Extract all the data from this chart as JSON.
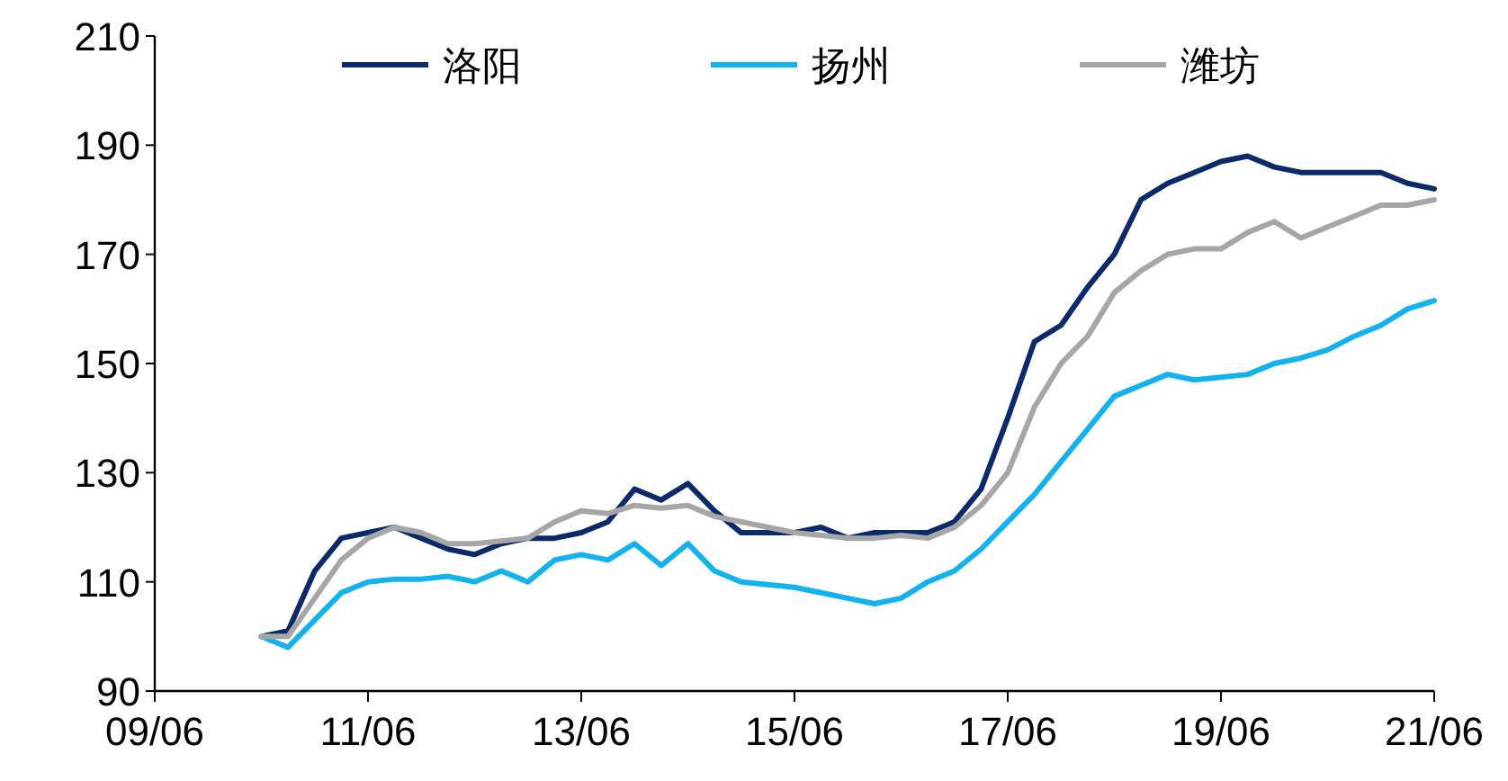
{
  "chart_data": {
    "type": "line",
    "legend": "top",
    "grid": false,
    "marker": "none",
    "line_style": "solid",
    "categories": [
      "09/06",
      null,
      null,
      null,
      null,
      null,
      null,
      null,
      "11/06",
      null,
      null,
      null,
      null,
      null,
      null,
      null,
      "13/06",
      null,
      null,
      null,
      null,
      null,
      null,
      null,
      "15/06",
      null,
      null,
      null,
      null,
      null,
      null,
      null,
      "17/06",
      null,
      null,
      null,
      null,
      null,
      null,
      null,
      "19/06",
      null,
      null,
      null,
      null,
      null,
      null,
      null,
      "21/06"
    ],
    "ylim": [
      90,
      210
    ],
    "yticks": [
      90,
      110,
      130,
      150,
      170,
      190,
      210
    ],
    "series": [
      {
        "name": "洛阳",
        "color": "#0b2a6b",
        "values": [
          null,
          null,
          null,
          null,
          100,
          101,
          112,
          118,
          119,
          120,
          118,
          116,
          115,
          117,
          118,
          118,
          119,
          121,
          127,
          125,
          128,
          123,
          119,
          119,
          119,
          120,
          118,
          119,
          119,
          119,
          121,
          127,
          140,
          154,
          157,
          164,
          170,
          180,
          183,
          185,
          187,
          188,
          186,
          185,
          185,
          185,
          185,
          183,
          182
        ]
      },
      {
        "name": "扬州",
        "color": "#12b2ee",
        "values": [
          null,
          null,
          null,
          null,
          100,
          98,
          103,
          108,
          110,
          110.5,
          110.5,
          111,
          110,
          112,
          110,
          114,
          115,
          114,
          117,
          113,
          117,
          112,
          110,
          109.5,
          109,
          108,
          107,
          106,
          107,
          110,
          112,
          116,
          121,
          126,
          132,
          138,
          144,
          146,
          148,
          147,
          147.5,
          148,
          150,
          151,
          152.5,
          155,
          157,
          160,
          161.5
        ]
      },
      {
        "name": "潍坊",
        "color": "#a6a6a6",
        "values": [
          null,
          null,
          null,
          null,
          100,
          100,
          107,
          114,
          118,
          120,
          119,
          117,
          117,
          117.5,
          118,
          121,
          123,
          122.5,
          124,
          123.5,
          124,
          122,
          121,
          120,
          119,
          118.5,
          118,
          118,
          118.5,
          118,
          120,
          124,
          130,
          142,
          150,
          155,
          163,
          167,
          170,
          171,
          171,
          174,
          176,
          173,
          175,
          177,
          179,
          179,
          180
        ]
      }
    ]
  }
}
